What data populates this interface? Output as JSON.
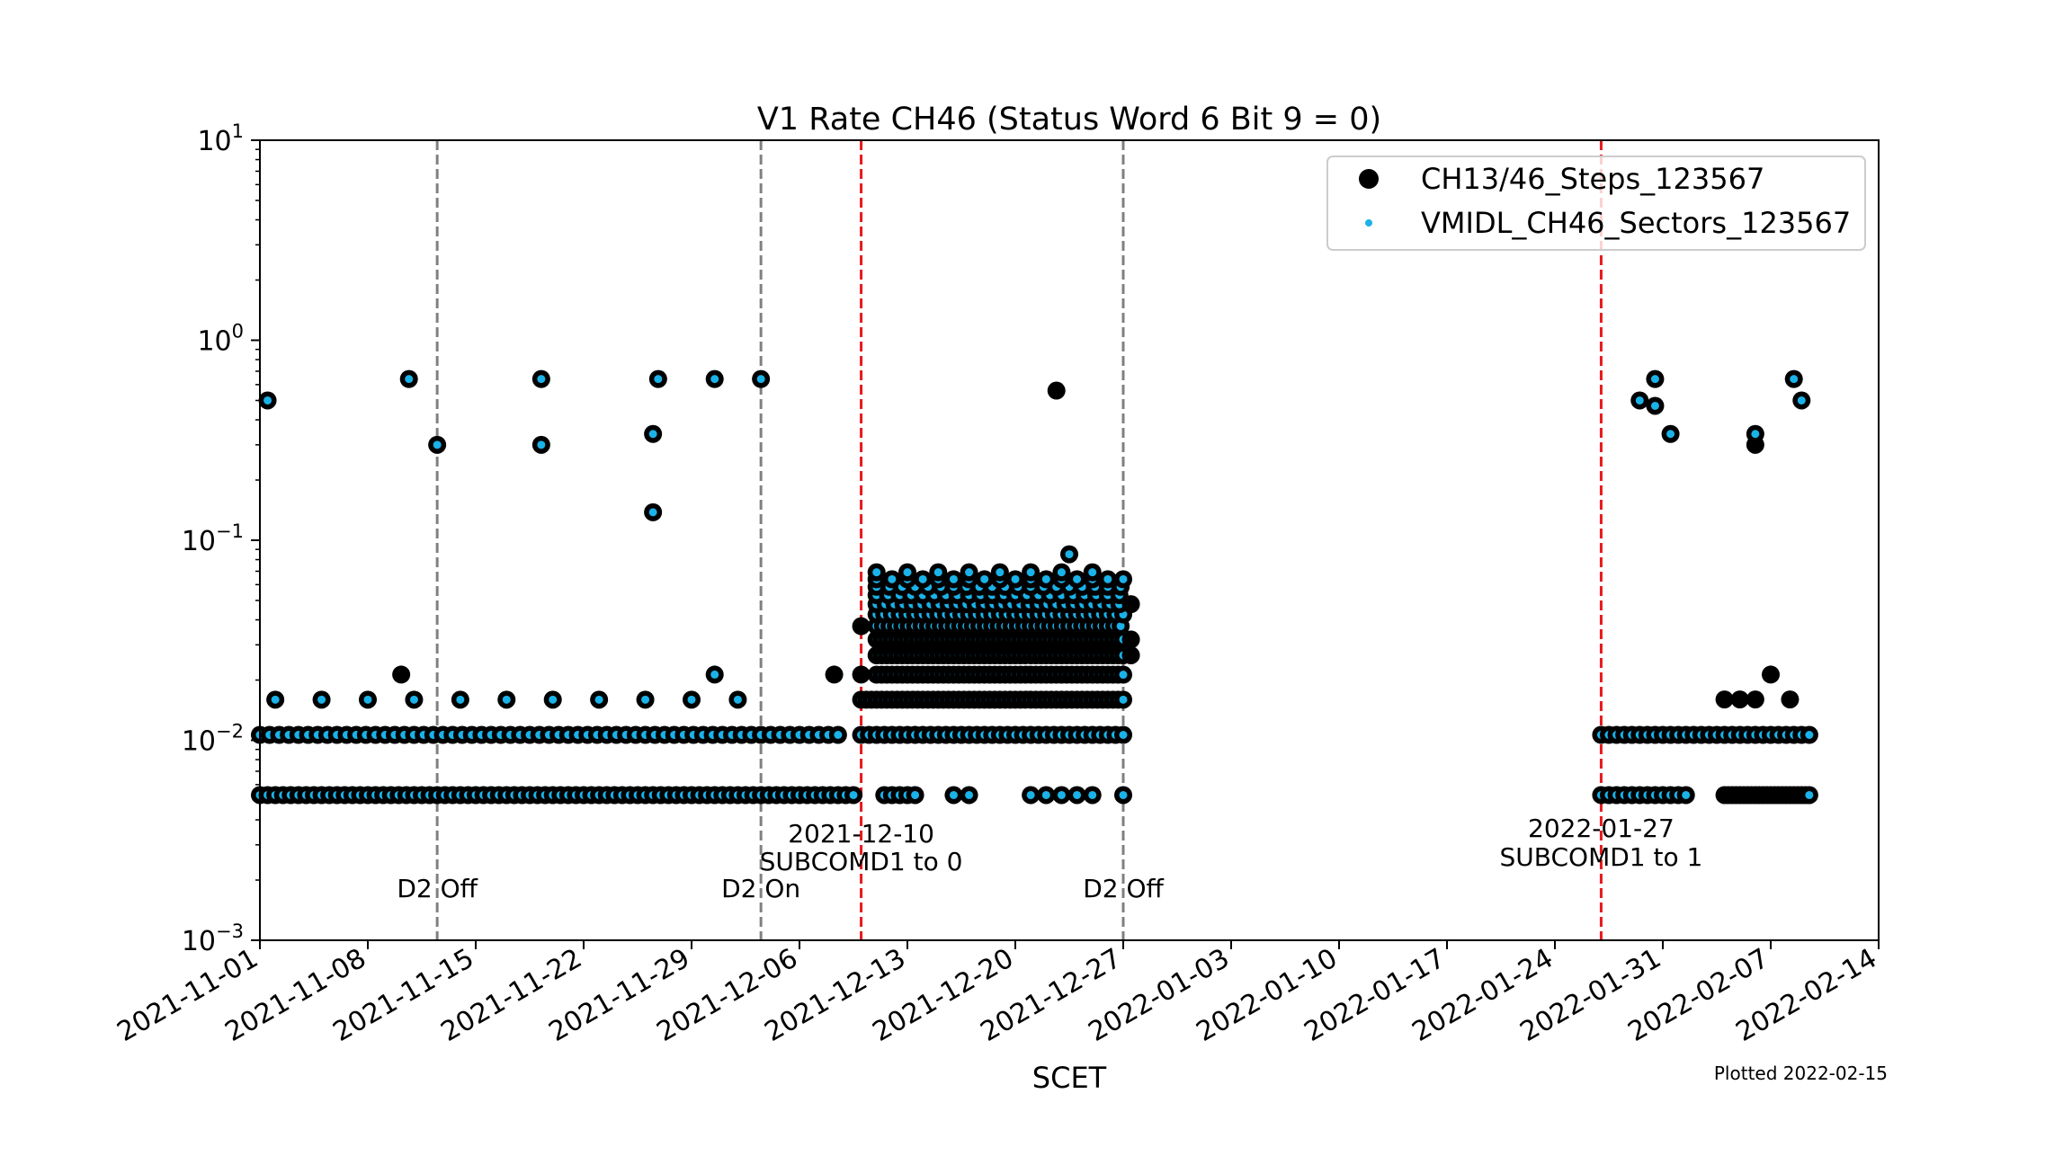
{
  "chart_data": {
    "type": "scatter",
    "title": "V1 Rate CH46 (Status Word 6 Bit 9 = 0)",
    "xlabel": "SCET",
    "ylabel": "",
    "yscale": "log",
    "xlim": [
      "2021-11-01",
      "2022-02-14"
    ],
    "ylim": [
      0.001,
      10
    ],
    "y_ticks": [
      {
        "value": 0.001,
        "base": "10",
        "exp": "−3"
      },
      {
        "value": 0.01,
        "base": "10",
        "exp": "−2"
      },
      {
        "value": 0.1,
        "base": "10",
        "exp": "−1"
      },
      {
        "value": 1,
        "base": "10",
        "exp": "0"
      },
      {
        "value": 10,
        "base": "10",
        "exp": "1"
      }
    ],
    "x_ticks": [
      "2021-11-01",
      "2021-11-08",
      "2021-11-15",
      "2021-11-22",
      "2021-11-29",
      "2021-12-06",
      "2021-12-13",
      "2021-12-20",
      "2021-12-27",
      "2022-01-03",
      "2022-01-10",
      "2022-01-17",
      "2022-01-24",
      "2022-01-31",
      "2022-02-07",
      "2022-02-14"
    ],
    "legend": {
      "position": "top-right",
      "entries": [
        {
          "label": "CH13/46_Steps_123567",
          "color": "#000000",
          "marker": "large-circle"
        },
        {
          "label": "VMIDL_CH46_Sectors_123567",
          "color": "#1ab2e8",
          "marker": "small-dot"
        }
      ]
    },
    "vlines": [
      {
        "x": "2021-11-12 12:00",
        "color": "#808080",
        "style": "dashed",
        "label": "D2 Off"
      },
      {
        "x": "2021-12-03 12:00",
        "color": "#808080",
        "style": "dashed",
        "label": "D2 On"
      },
      {
        "x": "2021-12-10",
        "color": "#e8191b",
        "style": "dashed",
        "label": "2021-12-10\nSUBCOMD1 to 0"
      },
      {
        "x": "2021-12-27",
        "color": "#808080",
        "style": "dashed",
        "label": "D2 Off"
      },
      {
        "x": "2022-01-27",
        "color": "#e8191b",
        "style": "dashed",
        "label": "2022-01-27\nSUBCOMD1 to 1"
      }
    ],
    "annotations": [
      {
        "text": "D2 Off",
        "x": "2021-11-12 12:00"
      },
      {
        "text": "D2 On",
        "x": "2021-12-03 12:00"
      },
      {
        "text": "2021-12-10",
        "x": "2021-12-10"
      },
      {
        "text": "SUBCOMD1 to 0",
        "x": "2021-12-10"
      },
      {
        "text": "D2 Off",
        "x": "2021-12-27"
      },
      {
        "text": "2022-01-27",
        "x": "2022-01-27"
      },
      {
        "text": "SUBCOMD1 to 1",
        "x": "2022-01-27"
      }
    ],
    "footnote": "Plotted 2022-02-15",
    "levels": [
      0.00532,
      0.01064,
      0.01596,
      0.02128,
      0.0266,
      0.03192,
      0.03724,
      0.04256,
      0.04788,
      0.0532,
      0.05852,
      0.06384,
      0.06916
    ],
    "series": [
      {
        "name": "CH13/46_Steps_123567",
        "color": "#000000",
        "points": [
          {
            "x": "2021-11-01 12:00",
            "y": 0.5
          },
          {
            "x": "2021-11-10 04:00",
            "y": 0.0213
          },
          {
            "x": "2021-11-10 16:00",
            "y": 0.64
          },
          {
            "x": "2021-11-12 12:00",
            "y": 0.3
          },
          {
            "x": "2021-11-19 06:00",
            "y": 0.64
          },
          {
            "x": "2021-11-19 06:00",
            "y": 0.3
          },
          {
            "x": "2021-11-26 12:00",
            "y": 0.34
          },
          {
            "x": "2021-11-26 12:00",
            "y": 0.138
          },
          {
            "x": "2021-11-26 20:00",
            "y": 0.64
          },
          {
            "x": "2021-11-30 12:00",
            "y": 0.64
          },
          {
            "x": "2021-11-30 12:00",
            "y": 0.0213
          },
          {
            "x": "2021-12-03 12:00",
            "y": 0.64
          },
          {
            "x": "2021-12-08 06:00",
            "y": 0.0213
          },
          {
            "x": "2021-12-10 00:00",
            "y": 0.0372
          },
          {
            "x": "2021-12-10 00:00",
            "y": 0.0213
          },
          {
            "x": "2021-12-22 16:00",
            "y": 0.56
          },
          {
            "x": "2021-12-23 12:00",
            "y": 0.0851
          },
          {
            "x": "2021-12-27 12:00",
            "y": 0.0479
          },
          {
            "x": "2021-12-27 12:00",
            "y": 0.0319
          },
          {
            "x": "2021-12-27 12:00",
            "y": 0.0266
          },
          {
            "x": "2022-01-29 12:00",
            "y": 0.5
          },
          {
            "x": "2022-01-30 12:00",
            "y": 0.64
          },
          {
            "x": "2022-01-30 12:00",
            "y": 0.47
          },
          {
            "x": "2022-01-31 12:00",
            "y": 0.34
          },
          {
            "x": "2022-02-06 00:00",
            "y": 0.34
          },
          {
            "x": "2022-02-06 00:00",
            "y": 0.3
          },
          {
            "x": "2022-02-07 00:00",
            "y": 0.0213
          },
          {
            "x": "2022-02-08 12:00",
            "y": 0.64
          },
          {
            "x": "2022-02-09 00:00",
            "y": 0.5
          },
          {
            "x": "2022-02-04 00:00",
            "y": 0.016
          },
          {
            "x": "2022-02-05 00:00",
            "y": 0.016
          },
          {
            "x": "2022-02-06 00:00",
            "y": 0.016
          },
          {
            "x": "2022-02-08 06:00",
            "y": 0.016
          }
        ]
      },
      {
        "name": "VMIDL_CH46_Sectors_123567",
        "color": "#1ab2e8",
        "points": [
          {
            "x": "2021-11-01 12:00",
            "y": 0.5
          },
          {
            "x": "2021-11-10 16:00",
            "y": 0.64
          },
          {
            "x": "2021-11-12 12:00",
            "y": 0.3
          },
          {
            "x": "2021-11-19 06:00",
            "y": 0.64
          },
          {
            "x": "2021-11-19 06:00",
            "y": 0.3
          },
          {
            "x": "2021-11-26 12:00",
            "y": 0.34
          },
          {
            "x": "2021-11-26 12:00",
            "y": 0.138
          },
          {
            "x": "2021-11-26 20:00",
            "y": 0.64
          },
          {
            "x": "2021-11-30 12:00",
            "y": 0.64
          },
          {
            "x": "2021-11-30 12:00",
            "y": 0.0213
          },
          {
            "x": "2021-12-03 12:00",
            "y": 0.64
          },
          {
            "x": "2021-12-23 12:00",
            "y": 0.0851
          },
          {
            "x": "2022-01-29 12:00",
            "y": 0.5
          },
          {
            "x": "2022-01-30 12:00",
            "y": 0.64
          },
          {
            "x": "2022-01-30 12:00",
            "y": 0.47
          },
          {
            "x": "2022-01-31 12:00",
            "y": 0.34
          },
          {
            "x": "2022-02-06 00:00",
            "y": 0.34
          },
          {
            "x": "2022-02-08 12:00",
            "y": 0.64
          },
          {
            "x": "2022-02-09 00:00",
            "y": 0.5
          }
        ]
      }
    ],
    "dense_groups": [
      {
        "series": "both",
        "y": 0.00532,
        "from": "2021-11-01",
        "to": "2021-12-09 12:00",
        "step_hours": 12
      },
      {
        "series": "both",
        "y": 0.00532,
        "from": "2021-12-11 12:00",
        "to": "2021-12-13 12:00",
        "step_hours": 12
      },
      {
        "series": "both",
        "y": 0.00532,
        "from": "2021-12-16",
        "to": "2021-12-17",
        "step_hours": 24
      },
      {
        "series": "both",
        "y": 0.00532,
        "from": "2021-12-21",
        "to": "2021-12-25",
        "step_hours": 24
      },
      {
        "series": "both",
        "y": 0.00532,
        "from": "2021-12-27",
        "to": "2021-12-27",
        "step_hours": 24
      },
      {
        "series": "both",
        "y": 0.00532,
        "from": "2022-01-27",
        "to": "2022-02-01 12:00",
        "step_hours": 12
      },
      {
        "series": "both",
        "y": 0.00532,
        "from": "2022-02-04",
        "to": "2022-02-09 12:00",
        "step_hours": 6
      },
      {
        "series": "both",
        "y": 0.01064,
        "from": "2021-11-01",
        "to": "2021-12-09",
        "step_hours": 15
      },
      {
        "series": "both",
        "y": 0.01064,
        "from": "2021-12-10",
        "to": "2021-12-27",
        "step_hours": 12
      },
      {
        "series": "both",
        "y": 0.01064,
        "from": "2022-01-27",
        "to": "2022-02-09 12:00",
        "step_hours": 12
      },
      {
        "series": "both",
        "y": 0.01596,
        "from": "2021-11-02",
        "to": "2021-12-04",
        "step_hours": 72
      },
      {
        "series": "both",
        "y": 0.01596,
        "from": "2021-12-10",
        "to": "2021-12-27",
        "step_hours": 8
      },
      {
        "series": "both",
        "y": 0.02128,
        "from": "2021-12-11",
        "to": "2021-12-27",
        "step_hours": 8
      },
      {
        "series": "both",
        "y": 0.0266,
        "from": "2021-12-11",
        "to": "2021-12-27",
        "step_hours": 8
      },
      {
        "series": "both",
        "y": 0.03192,
        "from": "2021-12-11",
        "to": "2021-12-27",
        "step_hours": 8
      },
      {
        "series": "both",
        "y": 0.03724,
        "from": "2021-12-11",
        "to": "2021-12-27",
        "step_hours": 10
      },
      {
        "series": "both",
        "y": 0.04256,
        "from": "2021-12-11",
        "to": "2021-12-27",
        "step_hours": 12
      },
      {
        "series": "both",
        "y": 0.04788,
        "from": "2021-12-11",
        "to": "2021-12-27",
        "step_hours": 14
      },
      {
        "series": "both",
        "y": 0.0532,
        "from": "2021-12-11",
        "to": "2021-12-27",
        "step_hours": 18
      },
      {
        "series": "both",
        "y": 0.05852,
        "from": "2021-12-11",
        "to": "2021-12-27",
        "step_hours": 20
      },
      {
        "series": "both",
        "y": 0.06384,
        "from": "2021-12-11",
        "to": "2021-12-27",
        "step_hours": 24
      },
      {
        "series": "both",
        "y": 0.06916,
        "from": "2021-12-11",
        "to": "2021-12-26",
        "step_hours": 48
      }
    ]
  }
}
